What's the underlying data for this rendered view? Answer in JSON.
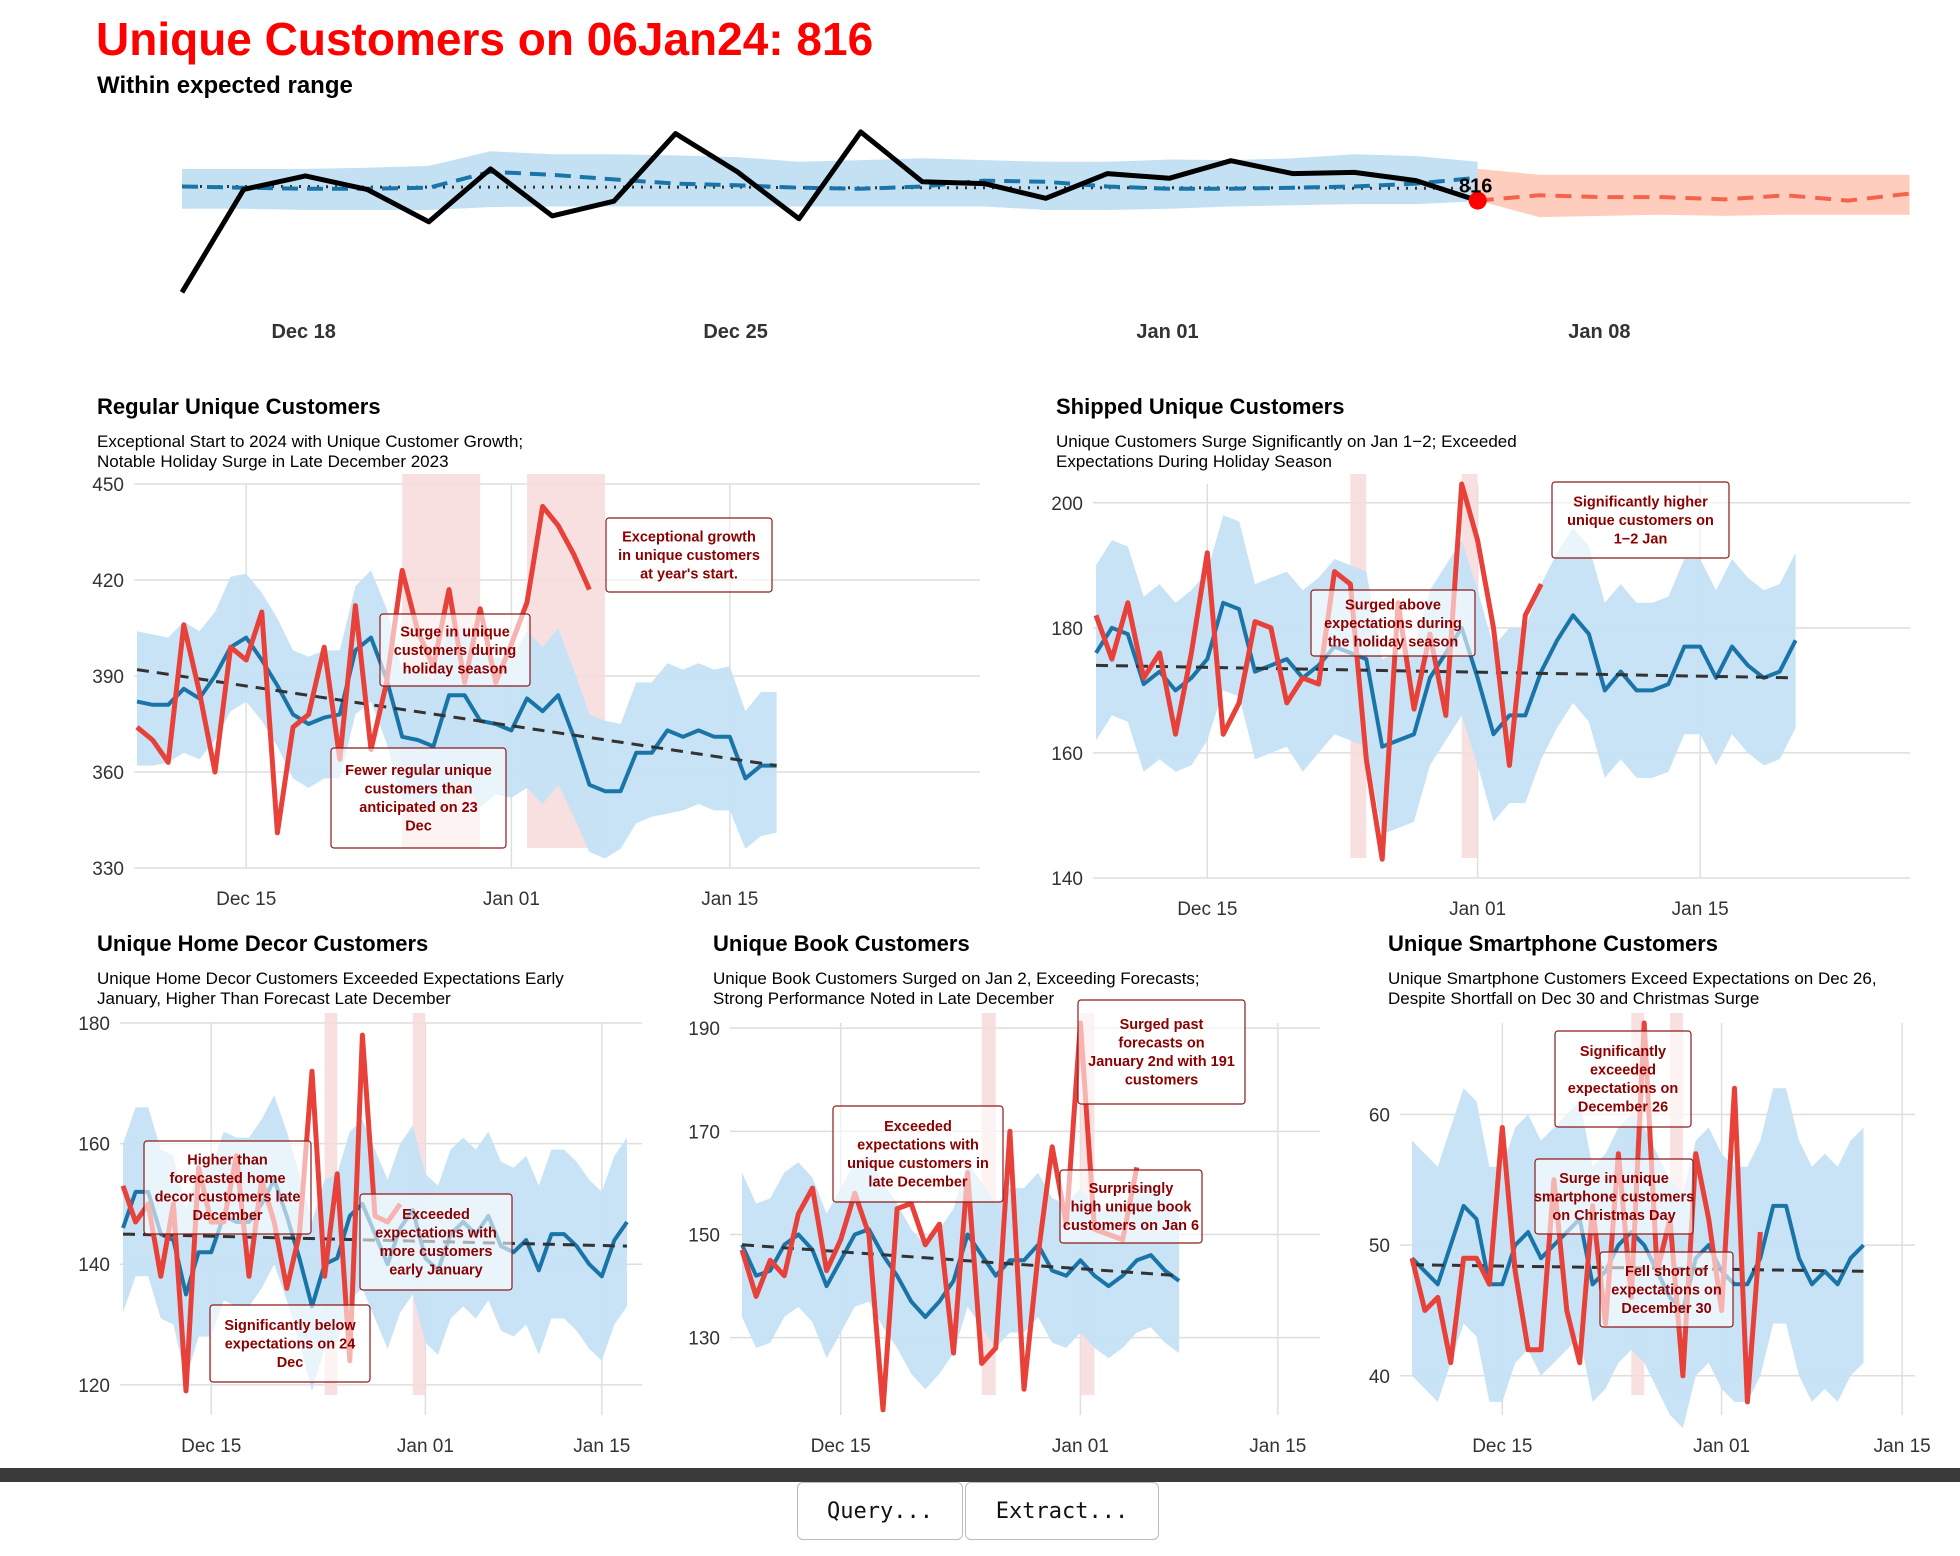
{
  "header": {
    "title": "Unique Customers on 06Jan24: 816",
    "subtitle": "Within expected range",
    "current_label": "816"
  },
  "colors": {
    "actual": "#e8413a",
    "forecast": "#1a74a8",
    "band": "#c4e1f4",
    "future_band": "#fecdbd",
    "future_line": "#f4634a",
    "annotation_border": "#8b1a1a",
    "annotation_text": "#8b0000",
    "highlight": "#f8dada"
  },
  "toolbar": {
    "query_label": "Query...",
    "extract_label": "Extract..."
  },
  "chart_data": [
    {
      "id": "top",
      "type": "line",
      "title": "Unique Customers on 06Jan24: 816",
      "subtitle": "Within expected range",
      "x_start": "2023-12-17",
      "x_ticks": [
        "Dec 18",
        "Dec 25",
        "Jan 01",
        "Jan 08"
      ],
      "ylim": [
        640,
        960
      ],
      "actual": [
        660,
        835,
        858,
        835,
        780,
        870,
        790,
        815,
        930,
        865,
        785,
        933,
        848,
        845,
        820,
        862,
        854,
        884,
        862,
        864,
        850,
        816
      ],
      "forecast_dashed": [
        840,
        838,
        836,
        836,
        838,
        865,
        860,
        852,
        845,
        842,
        838,
        836,
        840,
        850,
        848,
        840,
        836,
        836,
        838,
        840,
        845,
        855
      ],
      "trend_dotted": [
        840,
        840,
        840,
        839,
        839,
        839,
        839,
        839,
        839,
        839,
        838,
        838,
        838,
        838,
        838,
        838,
        838,
        838,
        838,
        837,
        837,
        837
      ],
      "band_lower": [
        802,
        802,
        800,
        800,
        800,
        805,
        806,
        806,
        806,
        806,
        806,
        806,
        806,
        806,
        800,
        800,
        802,
        806,
        808,
        810,
        810,
        815
      ],
      "band_upper": [
        870,
        870,
        870,
        872,
        875,
        900,
        895,
        895,
        893,
        890,
        882,
        885,
        888,
        885,
        882,
        882,
        886,
        885,
        888,
        895,
        892,
        882
      ],
      "future_forecast": [
        816,
        825,
        822,
        822,
        818,
        825,
        816,
        828
      ],
      "future_lower": [
        816,
        788,
        790,
        792,
        790,
        792,
        792,
        792
      ],
      "future_upper": [
        870,
        860,
        860,
        860,
        860,
        860,
        860,
        860
      ]
    },
    {
      "id": "regular",
      "type": "line",
      "title": "Regular Unique Customers",
      "subtitle_lines": [
        "Exceptional Start to 2024 with Unique Customer Growth;",
        "Notable Holiday Surge in Late December 2023"
      ],
      "x_start": "2023-12-08",
      "x_ticks": [
        "Dec 15",
        "Jan 01",
        "Jan 15"
      ],
      "y_ticks": [
        330,
        360,
        390,
        420,
        450
      ],
      "ylim": [
        330,
        450
      ],
      "forecast": [
        382,
        381,
        381,
        386,
        383,
        390,
        399,
        402,
        395,
        387,
        378,
        375,
        377,
        378,
        398,
        402,
        389,
        371,
        370,
        368,
        384,
        384,
        376,
        375,
        373,
        383,
        379,
        384,
        371,
        356,
        354,
        354,
        366,
        366,
        373,
        371,
        373,
        371,
        371,
        358,
        362,
        362
      ],
      "band_lower": [
        362,
        362,
        363,
        366,
        364,
        370,
        379,
        382,
        376,
        368,
        358,
        355,
        358,
        358,
        378,
        382,
        369,
        351,
        351,
        349,
        355,
        358,
        349,
        353,
        352,
        355,
        350,
        356,
        346,
        335,
        333,
        336,
        344,
        346,
        347,
        348,
        350,
        348,
        348,
        336,
        340,
        341
      ],
      "band_upper": [
        404,
        403,
        402,
        407,
        404,
        410,
        421,
        422,
        416,
        408,
        398,
        396,
        398,
        398,
        418,
        423,
        411,
        392,
        391,
        389,
        405,
        405,
        397,
        396,
        395,
        404,
        399,
        405,
        392,
        378,
        376,
        375,
        388,
        388,
        394,
        392,
        394,
        392,
        393,
        379,
        385,
        385
      ],
      "actual": [
        374,
        370,
        363,
        406,
        385,
        360,
        399,
        395,
        410,
        341,
        374,
        378,
        399,
        364,
        412,
        367,
        388,
        423,
        404,
        393,
        417,
        388,
        411,
        388,
        400,
        413,
        443,
        437,
        428,
        417
      ],
      "trend": [
        392,
        362
      ],
      "highlights": [
        [
          17,
          22
        ],
        [
          25,
          30
        ]
      ],
      "annotations": [
        {
          "lines": [
            "Exceptional growth",
            "in unique customers",
            "at year's start."
          ]
        },
        {
          "lines": [
            "Surge in unique",
            "customers during",
            "holiday season"
          ]
        },
        {
          "lines": [
            "Fewer regular unique",
            "customers than",
            "anticipated on 23",
            "Dec"
          ]
        }
      ]
    },
    {
      "id": "shipped",
      "type": "line",
      "title": "Shipped Unique Customers",
      "subtitle_lines": [
        "Unique Customers Surge Significantly on Jan 1−2; Exceeded",
        "Expectations During Holiday Season"
      ],
      "x_start": "2023-12-08",
      "x_ticks": [
        "Dec 15",
        "Jan 01",
        "Jan 15"
      ],
      "y_ticks": [
        140,
        160,
        180,
        200
      ],
      "ylim": [
        140,
        203
      ],
      "forecast": [
        176,
        180,
        179,
        171,
        173,
        170,
        172,
        175,
        184,
        183,
        173,
        174,
        175,
        172,
        174,
        177,
        176,
        175,
        161,
        162,
        163,
        172,
        176,
        180,
        172,
        163,
        166,
        166,
        173,
        178,
        182,
        179,
        170,
        173,
        170,
        170,
        171,
        177,
        177,
        172,
        177,
        174,
        172,
        173,
        178
      ],
      "band_lower": [
        162,
        166,
        165,
        157,
        159,
        157,
        158,
        162,
        170,
        169,
        159,
        160,
        161,
        157,
        160,
        163,
        162,
        161,
        147,
        148,
        149,
        158,
        162,
        166,
        158,
        149,
        152,
        152,
        159,
        164,
        168,
        165,
        156,
        159,
        156,
        156,
        157,
        163,
        163,
        158,
        163,
        160,
        158,
        159,
        164
      ],
      "band_upper": [
        190,
        194,
        193,
        185,
        187,
        184,
        186,
        189,
        198,
        197,
        187,
        188,
        189,
        186,
        188,
        191,
        190,
        189,
        175,
        176,
        177,
        186,
        190,
        194,
        186,
        177,
        180,
        180,
        187,
        192,
        196,
        193,
        184,
        187,
        184,
        184,
        185,
        191,
        191,
        186,
        191,
        188,
        186,
        187,
        192
      ],
      "actual": [
        182,
        175,
        184,
        172,
        176,
        163,
        176,
        192,
        163,
        168,
        181,
        180,
        168,
        172,
        171,
        189,
        187,
        159,
        143,
        184,
        167,
        179,
        166,
        203,
        194,
        180,
        158,
        182,
        187
      ],
      "trend": [
        174,
        172
      ],
      "highlights": [
        [
          16,
          17
        ],
        [
          23,
          24
        ]
      ],
      "annotations": [
        {
          "lines": [
            "Significantly higher",
            "unique customers on",
            "1−2 Jan"
          ]
        },
        {
          "lines": [
            "Surged above",
            "expectations during",
            "the holiday season"
          ]
        }
      ]
    },
    {
      "id": "home_decor",
      "type": "line",
      "title": "Unique Home Decor Customers",
      "subtitle_lines": [
        "Unique Home Decor Customers Exceeded Expectations Early",
        "January, Higher Than Forecast Late December"
      ],
      "x_start": "2023-12-08",
      "x_ticks": [
        "Dec 15",
        "Jan 01",
        "Jan 15"
      ],
      "y_ticks": [
        120,
        140,
        160,
        180
      ],
      "ylim": [
        115,
        180
      ],
      "forecast": [
        146,
        152,
        152,
        145,
        144,
        135,
        142,
        142,
        148,
        147,
        147,
        150,
        154,
        148,
        141,
        133,
        140,
        141,
        148,
        150,
        145,
        140,
        146,
        149,
        141,
        139,
        145,
        147,
        145,
        148,
        143,
        142,
        144,
        139,
        145,
        145,
        143,
        140,
        138,
        144,
        147
      ],
      "band_lower": [
        132,
        138,
        138,
        131,
        130,
        121,
        128,
        128,
        134,
        133,
        133,
        136,
        140,
        134,
        127,
        119,
        126,
        127,
        134,
        136,
        131,
        126,
        132,
        135,
        127,
        125,
        131,
        133,
        131,
        134,
        129,
        128,
        130,
        125,
        131,
        131,
        129,
        126,
        124,
        130,
        133
      ],
      "band_upper": [
        160,
        166,
        166,
        159,
        158,
        149,
        156,
        156,
        162,
        161,
        161,
        164,
        168,
        162,
        155,
        147,
        154,
        155,
        162,
        164,
        159,
        154,
        160,
        163,
        155,
        153,
        159,
        161,
        159,
        162,
        157,
        156,
        158,
        153,
        159,
        159,
        157,
        154,
        152,
        158,
        161
      ],
      "actual": [
        153,
        147,
        150,
        138,
        150,
        119,
        156,
        147,
        147,
        158,
        138,
        154,
        147,
        136,
        145,
        172,
        138,
        155,
        124,
        178,
        148,
        147,
        150
      ],
      "trend": [
        145,
        143
      ],
      "highlights": [
        [
          16,
          17
        ],
        [
          23,
          24
        ]
      ],
      "annotations": [
        {
          "lines": [
            "Higher than",
            "forecasted home",
            "decor customers late",
            "December"
          ]
        },
        {
          "lines": [
            "Exceeded",
            "expectations with",
            "more customers",
            "early January"
          ]
        },
        {
          "lines": [
            "Significantly below",
            "expectations on 24",
            "Dec"
          ]
        }
      ]
    },
    {
      "id": "book",
      "type": "line",
      "title": "Unique Book Customers",
      "subtitle_lines": [
        "Unique Book Customers Surged on Jan 2, Exceeding Forecasts;",
        "Strong Performance Noted in Late December"
      ],
      "x_start": "2023-12-08",
      "x_ticks": [
        "Dec 15",
        "Jan 01",
        "Jan 15"
      ],
      "y_ticks": [
        130,
        150,
        170,
        190
      ],
      "ylim": [
        115,
        191
      ],
      "forecast": [
        148,
        142,
        143,
        148,
        150,
        147,
        140,
        145,
        150,
        151,
        146,
        142,
        137,
        134,
        137,
        141,
        150,
        146,
        142,
        145,
        145,
        148,
        143,
        142,
        145,
        142,
        140,
        142,
        145,
        146,
        143,
        141
      ],
      "band_lower": [
        134,
        128,
        129,
        134,
        136,
        133,
        126,
        131,
        136,
        137,
        132,
        128,
        123,
        120,
        123,
        127,
        136,
        132,
        128,
        131,
        131,
        134,
        129,
        128,
        131,
        128,
        126,
        128,
        131,
        132,
        129,
        127
      ],
      "band_upper": [
        162,
        156,
        157,
        162,
        164,
        161,
        154,
        159,
        164,
        165,
        160,
        156,
        151,
        148,
        151,
        155,
        164,
        160,
        156,
        159,
        159,
        162,
        157,
        156,
        159,
        156,
        154,
        156,
        159,
        160,
        157,
        155
      ],
      "actual": [
        147,
        138,
        145,
        142,
        154,
        159,
        143,
        149,
        158,
        150,
        116,
        155,
        156,
        148,
        152,
        127,
        162,
        125,
        128,
        170,
        120,
        146,
        167,
        152,
        191,
        151,
        150,
        149,
        163
      ],
      "trend": [
        148,
        142
      ],
      "highlights": [
        [
          17,
          18
        ],
        [
          24,
          25
        ]
      ],
      "annotations": [
        {
          "lines": [
            "Surged past",
            "forecasts on",
            "January 2nd with 191",
            "customers"
          ]
        },
        {
          "lines": [
            "Exceeded",
            "expectations with",
            "unique customers in",
            "late December"
          ]
        },
        {
          "lines": [
            "Surprisingly",
            "high unique book",
            "customers on Jan 6"
          ]
        }
      ]
    },
    {
      "id": "smartphone",
      "type": "line",
      "title": "Unique Smartphone Customers",
      "subtitle_lines": [
        "Unique Smartphone Customers Exceed Expectations on Dec 26,",
        "Despite Shortfall on Dec 30 and Christmas Surge"
      ],
      "x_start": "2023-12-08",
      "x_ticks": [
        "Dec 15",
        "Jan 01",
        "Jan 15"
      ],
      "y_ticks": [
        40,
        50,
        60
      ],
      "ylim": [
        37,
        67
      ],
      "forecast": [
        49,
        48,
        47,
        50,
        53,
        52,
        47,
        47,
        50,
        51,
        49,
        50,
        51,
        52,
        47,
        48,
        50,
        51,
        50,
        48,
        46,
        45,
        49,
        50,
        48,
        47,
        47,
        49,
        53,
        53,
        49,
        47,
        48,
        47,
        49,
        50
      ],
      "band_lower": [
        40,
        39,
        38,
        41,
        44,
        43,
        38,
        38,
        41,
        42,
        40,
        41,
        42,
        43,
        38,
        39,
        41,
        42,
        41,
        39,
        37,
        36,
        40,
        41,
        39,
        38,
        38,
        40,
        44,
        44,
        40,
        38,
        39,
        38,
        40,
        41
      ],
      "band_upper": [
        58,
        57,
        56,
        59,
        62,
        61,
        56,
        56,
        59,
        60,
        58,
        59,
        60,
        61,
        56,
        57,
        59,
        60,
        59,
        57,
        55,
        54,
        58,
        59,
        57,
        56,
        56,
        58,
        62,
        62,
        58,
        56,
        57,
        56,
        58,
        59
      ],
      "actual": [
        49,
        45,
        46,
        41,
        49,
        49,
        47,
        59,
        48,
        42,
        42,
        55,
        45,
        41,
        53,
        44,
        57,
        46,
        67,
        48,
        52,
        40,
        57,
        52,
        45,
        62,
        38,
        51
      ],
      "trend": [
        48.5,
        48
      ],
      "highlights": [
        [
          17,
          18
        ],
        [
          20,
          21
        ]
      ],
      "annotations": [
        {
          "lines": [
            "Significantly",
            "exceeded",
            "expectations on",
            "December 26"
          ]
        },
        {
          "lines": [
            "Surge in unique",
            "smartphone customers",
            "on Christmas Day"
          ]
        },
        {
          "lines": [
            "Fell short of",
            "expectations on",
            "December 30"
          ]
        }
      ]
    }
  ]
}
